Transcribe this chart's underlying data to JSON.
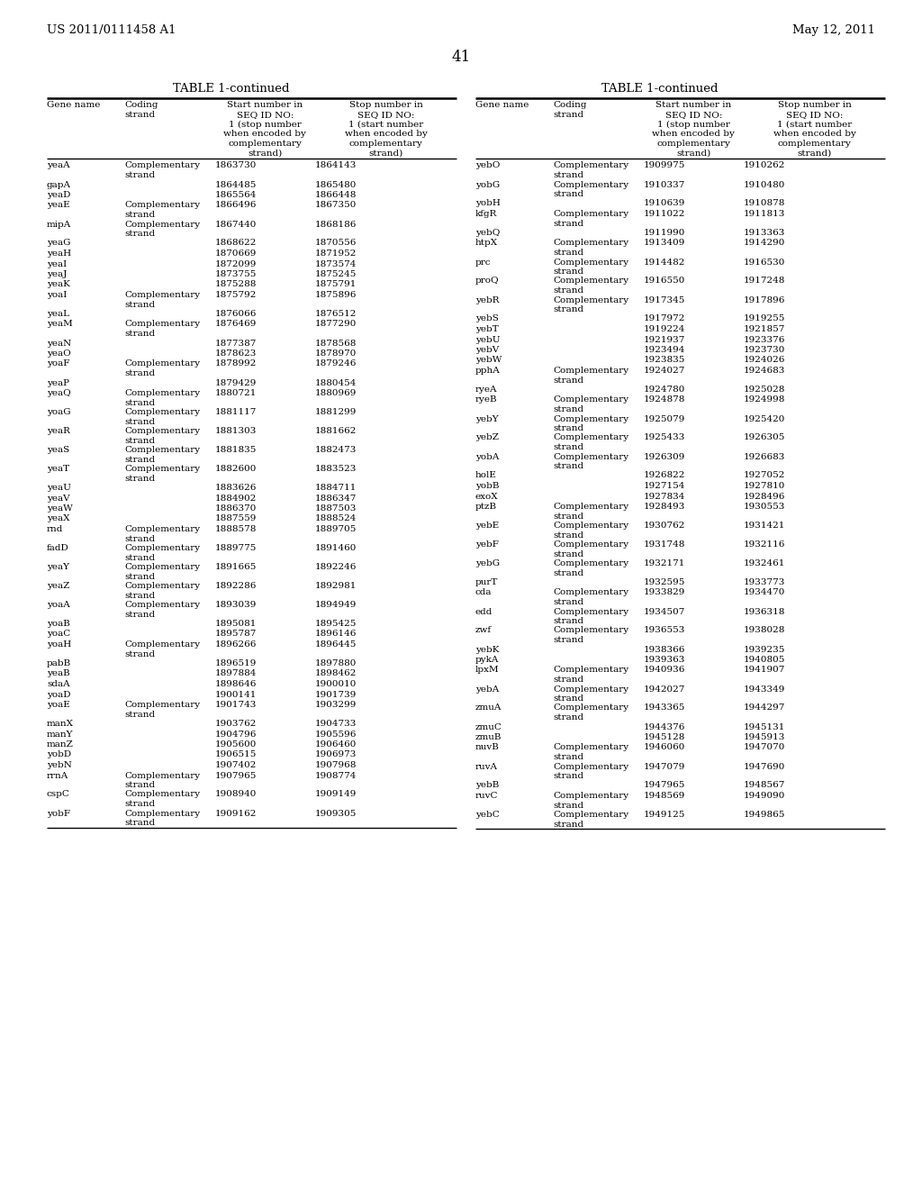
{
  "page_header_left": "US 2011/0111458 A1",
  "page_header_right": "May 12, 2011",
  "page_number": "41",
  "table_title": "TABLE 1-continued",
  "col_headers": [
    "Gene name",
    "Coding\nstrand",
    "Start number in\nSEQ ID NO:\n1 (stop number\nwhen encoded by\ncomplementary\nstrand)",
    "Stop number in\nSEQ ID NO:\n1 (start number\nwhen encoded by\ncomplementary\nstrand)"
  ],
  "left_table": [
    [
      "yeaA",
      "Complementary\nstrand",
      "1863730",
      "1864143"
    ],
    [
      "gapA",
      "",
      "1864485",
      "1865480"
    ],
    [
      "yeaD",
      "",
      "1865564",
      "1866448"
    ],
    [
      "yeaE",
      "Complementary\nstrand",
      "1866496",
      "1867350"
    ],
    [
      "mipA",
      "Complementary\nstrand",
      "1867440",
      "1868186"
    ],
    [
      "yeaG",
      "",
      "1868622",
      "1870556"
    ],
    [
      "yeaH",
      "",
      "1870669",
      "1871952"
    ],
    [
      "yeaI",
      "",
      "1872099",
      "1873574"
    ],
    [
      "yeaJ",
      "",
      "1873755",
      "1875245"
    ],
    [
      "yeaK",
      "",
      "1875288",
      "1875791"
    ],
    [
      "yoaI",
      "Complementary\nstrand",
      "1875792",
      "1875896"
    ],
    [
      "yeaL",
      "",
      "1876066",
      "1876512"
    ],
    [
      "yeaM",
      "Complementary\nstrand",
      "1876469",
      "1877290"
    ],
    [
      "yeaN",
      "",
      "1877387",
      "1878568"
    ],
    [
      "yeaO",
      "",
      "1878623",
      "1878970"
    ],
    [
      "yoaF",
      "Complementary\nstrand",
      "1878992",
      "1879246"
    ],
    [
      "yeaP",
      "",
      "1879429",
      "1880454"
    ],
    [
      "yeaQ",
      "Complementary\nstrand",
      "1880721",
      "1880969"
    ],
    [
      "yoaG",
      "Complementary\nstrand",
      "1881117",
      "1881299"
    ],
    [
      "yeaR",
      "Complementary\nstrand",
      "1881303",
      "1881662"
    ],
    [
      "yeaS",
      "Complementary\nstrand",
      "1881835",
      "1882473"
    ],
    [
      "yeaT",
      "Complementary\nstrand",
      "1882600",
      "1883523"
    ],
    [
      "yeaU",
      "",
      "1883626",
      "1884711"
    ],
    [
      "yeaV",
      "",
      "1884902",
      "1886347"
    ],
    [
      "yeaW",
      "",
      "1886370",
      "1887503"
    ],
    [
      "yeaX",
      "",
      "1887559",
      "1888524"
    ],
    [
      "rnd",
      "Complementary\nstrand",
      "1888578",
      "1889705"
    ],
    [
      "fadD",
      "Complementary\nstrand",
      "1889775",
      "1891460"
    ],
    [
      "yeaY",
      "Complementary\nstrand",
      "1891665",
      "1892246"
    ],
    [
      "yeaZ",
      "Complementary\nstrand",
      "1892286",
      "1892981"
    ],
    [
      "yoaA",
      "Complementary\nstrand",
      "1893039",
      "1894949"
    ],
    [
      "yoaB",
      "",
      "1895081",
      "1895425"
    ],
    [
      "yoaC",
      "",
      "1895787",
      "1896146"
    ],
    [
      "yoaH",
      "Complementary\nstrand",
      "1896266",
      "1896445"
    ],
    [
      "pabB",
      "",
      "1896519",
      "1897880"
    ],
    [
      "yeaB",
      "",
      "1897884",
      "1898462"
    ],
    [
      "sdaA",
      "",
      "1898646",
      "1900010"
    ],
    [
      "yoaD",
      "",
      "1900141",
      "1901739"
    ],
    [
      "yoaE",
      "Complementary\nstrand",
      "1901743",
      "1903299"
    ],
    [
      "manX",
      "",
      "1903762",
      "1904733"
    ],
    [
      "manY",
      "",
      "1904796",
      "1905596"
    ],
    [
      "manZ",
      "",
      "1905600",
      "1906460"
    ],
    [
      "yobD",
      "",
      "1906515",
      "1906973"
    ],
    [
      "yebN",
      "",
      "1907402",
      "1907968"
    ],
    [
      "rrnA",
      "Complementary\nstrand",
      "1907965",
      "1908774"
    ],
    [
      "cspC",
      "Complementary\nstrand",
      "1908940",
      "1909149"
    ],
    [
      "yobF",
      "Complementary\nstrand",
      "1909162",
      "1909305"
    ]
  ],
  "right_table": [
    [
      "yebO",
      "Complementary\nstrand",
      "1909975",
      "1910262"
    ],
    [
      "yobG",
      "Complementary\nstrand",
      "1910337",
      "1910480"
    ],
    [
      "yobH",
      "",
      "1910639",
      "1910878"
    ],
    [
      "kfgR",
      "Complementary\nstrand",
      "1911022",
      "1911813"
    ],
    [
      "yebQ",
      "",
      "1911990",
      "1913363"
    ],
    [
      "htpX",
      "Complementary\nstrand",
      "1913409",
      "1914290"
    ],
    [
      "prc",
      "Complementary\nstrand",
      "1914482",
      "1916530"
    ],
    [
      "proQ",
      "Complementary\nstrand",
      "1916550",
      "1917248"
    ],
    [
      "yebR",
      "Complementary\nstrand",
      "1917345",
      "1917896"
    ],
    [
      "yebS",
      "",
      "1917972",
      "1919255"
    ],
    [
      "yebT",
      "",
      "1919224",
      "1921857"
    ],
    [
      "yebU",
      "",
      "1921937",
      "1923376"
    ],
    [
      "yebV",
      "",
      "1923494",
      "1923730"
    ],
    [
      "yebW",
      "",
      "1923835",
      "1924026"
    ],
    [
      "pphA",
      "Complementary\nstrand",
      "1924027",
      "1924683"
    ],
    [
      "ryeA",
      "",
      "1924780",
      "1925028"
    ],
    [
      "ryeB",
      "Complementary\nstrand",
      "1924878",
      "1924998"
    ],
    [
      "yebY",
      "Complementary\nstrand",
      "1925079",
      "1925420"
    ],
    [
      "yebZ",
      "Complementary\nstrand",
      "1925433",
      "1926305"
    ],
    [
      "yobA",
      "Complementary\nstrand",
      "1926309",
      "1926683"
    ],
    [
      "holE",
      "",
      "1926822",
      "1927052"
    ],
    [
      "yobB",
      "",
      "1927154",
      "1927810"
    ],
    [
      "exoX",
      "",
      "1927834",
      "1928496"
    ],
    [
      "ptzB",
      "Complementary\nstrand",
      "1928493",
      "1930553"
    ],
    [
      "yebE",
      "Complementary\nstrand",
      "1930762",
      "1931421"
    ],
    [
      "yebF",
      "Complementary\nstrand",
      "1931748",
      "1932116"
    ],
    [
      "yebG",
      "Complementary\nstrand",
      "1932171",
      "1932461"
    ],
    [
      "purT",
      "",
      "1932595",
      "1933773"
    ],
    [
      "cda",
      "Complementary\nstrand",
      "1933829",
      "1934470"
    ],
    [
      "edd",
      "Complementary\nstrand",
      "1934507",
      "1936318"
    ],
    [
      "zwf",
      "Complementary\nstrand",
      "1936553",
      "1938028"
    ],
    [
      "yebK",
      "",
      "1938366",
      "1939235"
    ],
    [
      "pykA",
      "",
      "1939363",
      "1940805"
    ],
    [
      "lpxM",
      "Complementary\nstrand",
      "1940936",
      "1941907"
    ],
    [
      "yebA",
      "Complementary\nstrand",
      "1942027",
      "1943349"
    ],
    [
      "zmuA",
      "Complementary\nstrand",
      "1943365",
      "1944297"
    ],
    [
      "zmuC",
      "",
      "1944376",
      "1945131"
    ],
    [
      "zmuB",
      "",
      "1945128",
      "1945913"
    ],
    [
      "nuvB",
      "Complementary\nstrand",
      "1946060",
      "1947070"
    ],
    [
      "ruvA",
      "Complementary\nstrand",
      "1947079",
      "1947690"
    ],
    [
      "yebB",
      "",
      "1947965",
      "1948567"
    ],
    [
      "ruvC",
      "Complementary\nstrand",
      "1948569",
      "1949090"
    ],
    [
      "yebC",
      "Complementary\nstrand",
      "1949125",
      "1949865"
    ]
  ],
  "background_color": "#ffffff",
  "text_color": "#000000"
}
